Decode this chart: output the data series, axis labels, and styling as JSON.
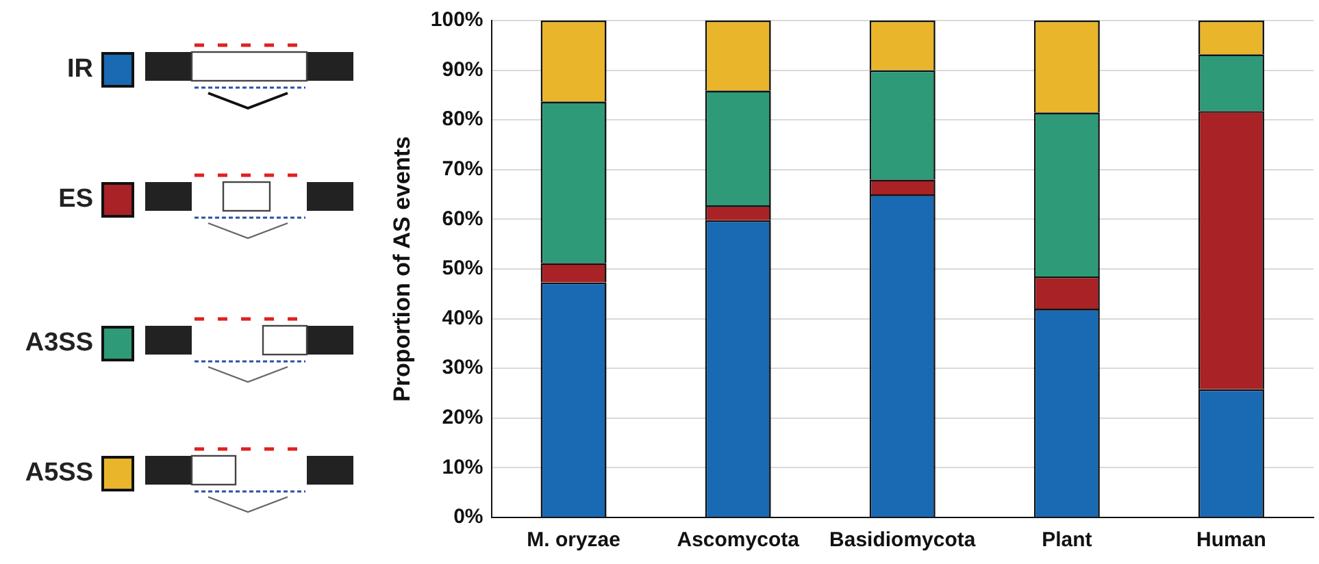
{
  "chart_data": {
    "type": "bar",
    "stacked": true,
    "ylabel": "Proportion of AS events",
    "categories": [
      "M. oryzae",
      "Ascomycota",
      "Basidiomycota",
      "Plant",
      "Human"
    ],
    "series": [
      {
        "name": "IR",
        "color": "#1a69b3",
        "values": [
          47.3,
          59.8,
          65,
          42,
          25.8
        ]
      },
      {
        "name": "ES",
        "color": "#a82226",
        "values": [
          3.9,
          3,
          3,
          6.5,
          56
        ]
      },
      {
        "name": "A3SS",
        "color": "#2e9a78",
        "values": [
          32.5,
          23.1,
          22,
          33,
          11.4
        ]
      },
      {
        "name": "A5SS",
        "color": "#e9b52b",
        "values": [
          16.3,
          14.1,
          10,
          18.5,
          6.8
        ]
      }
    ],
    "ylim": [
      0,
      100
    ],
    "yticks": [
      {
        "value": 0,
        "label": "0%"
      },
      {
        "value": 10,
        "label": "10%"
      },
      {
        "value": 20,
        "label": "20%"
      },
      {
        "value": 30,
        "label": "30%"
      },
      {
        "value": 40,
        "label": "40%"
      },
      {
        "value": 50,
        "label": "50%"
      },
      {
        "value": 60,
        "label": "60%"
      },
      {
        "value": 70,
        "label": "70%"
      },
      {
        "value": 80,
        "label": "80%"
      },
      {
        "value": 90,
        "label": "90%"
      },
      {
        "value": 100,
        "label": "100%"
      }
    ],
    "grid": "y",
    "legend": "left"
  }
}
